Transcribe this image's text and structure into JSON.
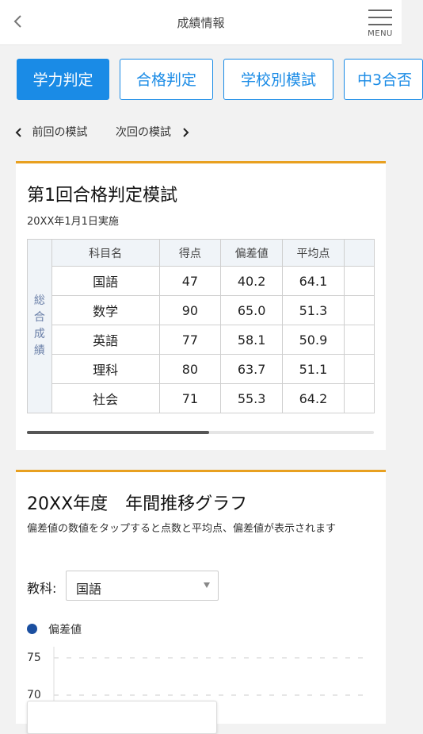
{
  "header": {
    "title": "成績情報",
    "menu_label": "MENU"
  },
  "tabs": [
    {
      "label": "学力判定",
      "active": true
    },
    {
      "label": "合格判定",
      "active": false
    },
    {
      "label": "学校別模試",
      "active": false
    },
    {
      "label": "中3合否",
      "active": false
    }
  ],
  "nav": {
    "prev_label": "前回の模試",
    "next_label": "次回の模試"
  },
  "exam_card": {
    "title": "第1回合格判定模試",
    "date": "20XX年1月1日実施",
    "side_label": [
      "総",
      "合",
      "成",
      "績"
    ],
    "headers": [
      "科目名",
      "得点",
      "偏差値",
      "平均点"
    ],
    "rows": [
      {
        "subject": "国語",
        "score": "47",
        "deviation": "40.2",
        "average": "64.1"
      },
      {
        "subject": "数学",
        "score": "90",
        "deviation": "65.0",
        "average": "51.3"
      },
      {
        "subject": "英語",
        "score": "77",
        "deviation": "58.1",
        "average": "50.9"
      },
      {
        "subject": "理科",
        "score": "80",
        "deviation": "63.7",
        "average": "51.1"
      },
      {
        "subject": "社会",
        "score": "71",
        "deviation": "55.3",
        "average": "64.2"
      }
    ],
    "scroll_position": 0.5
  },
  "graph_card": {
    "title": "20XX年度　年間推移グラフ",
    "description": "偏差値の数値をタップすると点数と平均点、偏差値が表示されます",
    "subject_label": "教科:",
    "subject_value": "国語",
    "legend_label": "偏差値",
    "colors": {
      "series": "#1b4fa0",
      "accent": "#e8a020",
      "primary": "#1a8be6"
    }
  },
  "chart_data": {
    "type": "line",
    "series": [
      {
        "name": "偏差値",
        "values": []
      }
    ],
    "y_ticks": [
      "75",
      "70"
    ],
    "grid": true
  }
}
